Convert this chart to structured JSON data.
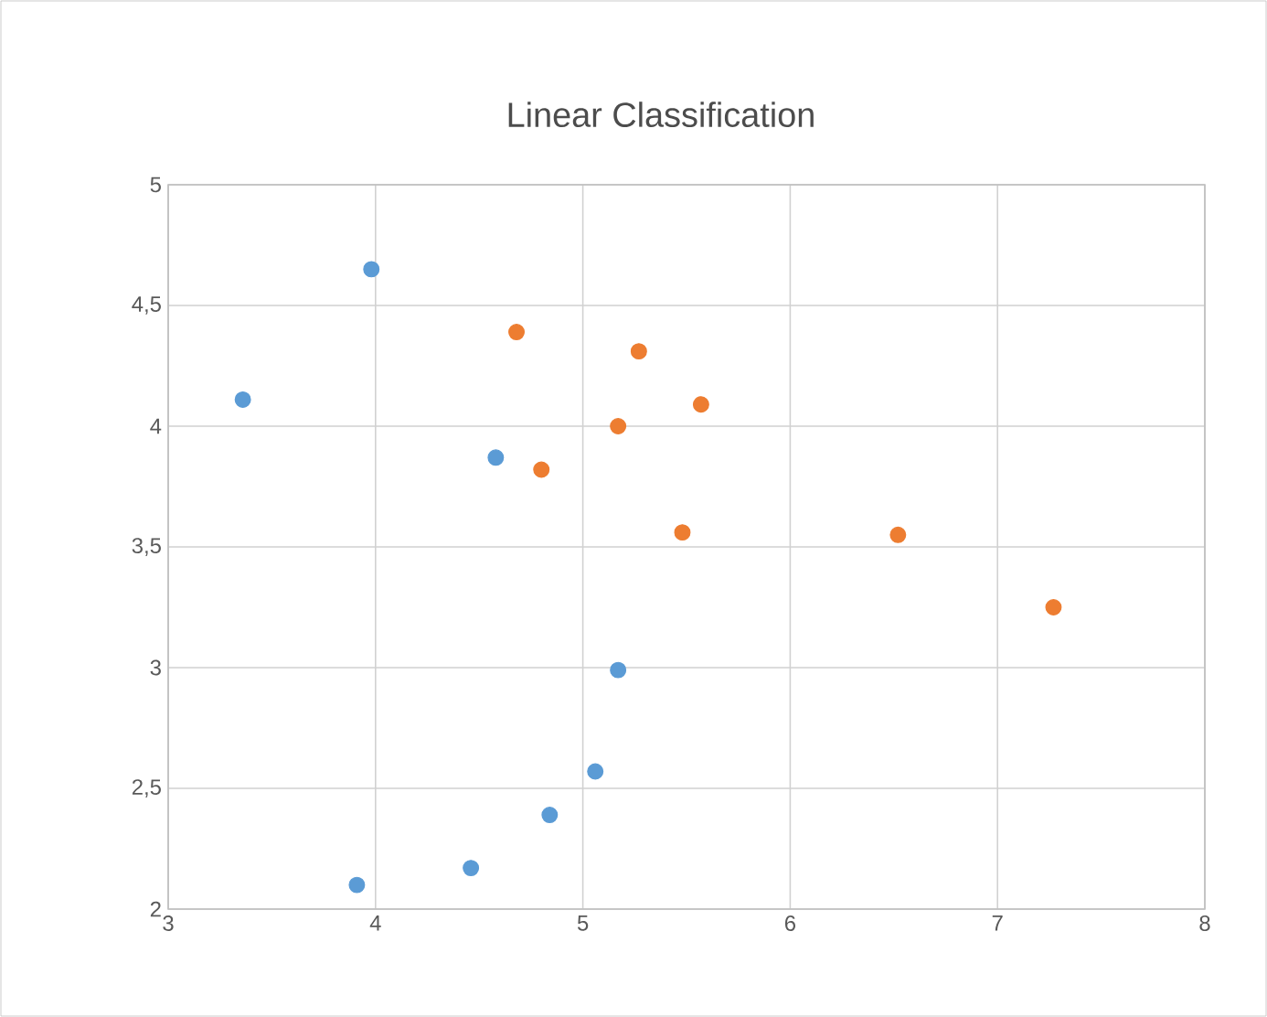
{
  "chart_data": {
    "type": "scatter",
    "title": "Linear Classification",
    "marker": "circle",
    "grid": true,
    "xlim": [
      3,
      8
    ],
    "xticks": [
      3,
      4,
      5,
      6,
      7,
      8
    ],
    "ylim": [
      2,
      5
    ],
    "yticks": [
      2,
      {
        "value": 2.5,
        "label": "2,5"
      },
      3,
      {
        "value": 3.5,
        "label": "3,5"
      },
      4,
      {
        "value": 4.5,
        "label": "4,5"
      },
      5
    ],
    "series": [
      {
        "color": "#5b9bd5",
        "x": [
          3.98,
          3.36,
          4.58,
          5.17,
          5.06,
          4.84,
          4.46,
          3.91
        ],
        "values": [
          4.65,
          4.11,
          3.87,
          2.99,
          2.57,
          2.39,
          2.17,
          2.1
        ]
      },
      {
        "color": "#ed7d31",
        "x": [
          4.68,
          5.27,
          5.57,
          5.17,
          4.8,
          5.48,
          6.52,
          7.27
        ],
        "values": [
          4.39,
          4.31,
          4.09,
          4.0,
          3.82,
          3.56,
          3.55,
          3.25
        ]
      }
    ]
  }
}
